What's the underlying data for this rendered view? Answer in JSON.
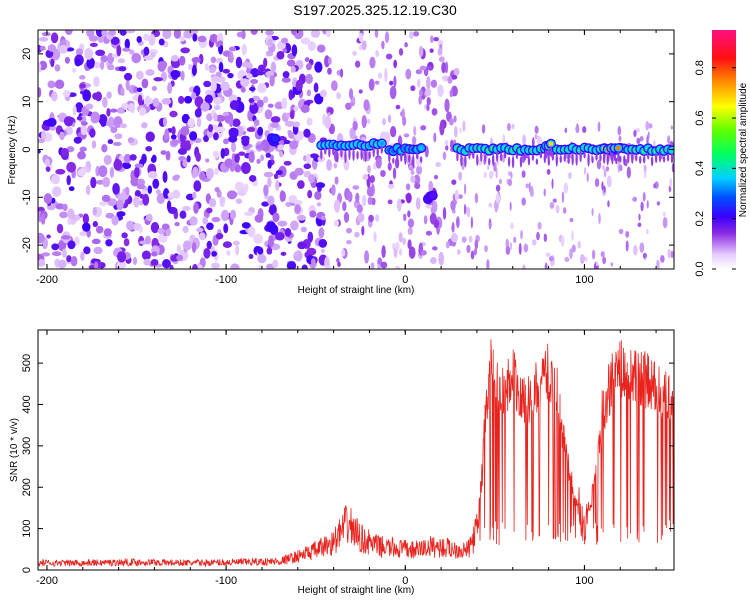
{
  "title": "S197.2025.325.12.19.C30",
  "chart_data": [
    {
      "type": "heatmap",
      "xlabel": "Height of straight line (km)",
      "ylabel": "Frequency (Hz)",
      "xlim": [
        -205,
        150
      ],
      "ylim": [
        -25,
        25
      ],
      "xticks": [
        -200,
        -100,
        0,
        100
      ],
      "yticks": [
        -20,
        -10,
        0,
        10,
        20
      ],
      "colorbar": {
        "label": "Normalized spectral amplitude",
        "range": [
          0,
          0.95
        ],
        "ticks": [
          0.0,
          0.2,
          0.4,
          0.6,
          0.8
        ],
        "tick_labels": [
          "0.0",
          "0.2",
          "0.4",
          "0.6",
          "0.8"
        ]
      },
      "features": [
        {
          "x_range": [
            -205,
            -45
          ],
          "description_level": 0.15,
          "kind": "scattered-noise"
        },
        {
          "x_range": [
            -75,
            -72
          ],
          "freq": 2,
          "level": 0.25
        },
        {
          "x_range": [
            -48,
            -12
          ],
          "freq": 1,
          "level": 0.4
        },
        {
          "x_range": [
            -10,
            10
          ],
          "freq": 0,
          "level": 0.35
        },
        {
          "x_range": [
            12,
            16
          ],
          "freq": -10,
          "level": 0.2
        },
        {
          "x_range": [
            28,
            150
          ],
          "freq": 0,
          "level": 0.5
        },
        {
          "x_range": [
            78,
            82
          ],
          "freq": 1,
          "level": 0.85
        },
        {
          "x_range": [
            110,
            120
          ],
          "freq": 0,
          "level": 0.9
        }
      ]
    },
    {
      "type": "line",
      "xlabel": "Height of straight line (km)",
      "ylabel": "SNR (10 * v/v)",
      "xlim": [
        -205,
        150
      ],
      "ylim": [
        0,
        580
      ],
      "xticks": [
        -200,
        -100,
        0,
        100
      ],
      "yticks": [
        0,
        100,
        200,
        300,
        400,
        500
      ],
      "color": "#e8231e",
      "series": [
        {
          "x": [
            -205,
            -180,
            -150,
            -120,
            -90,
            -70,
            -60,
            -50,
            -40,
            -32,
            -25,
            -15,
            -5,
            5,
            15,
            25,
            35,
            40,
            43,
            45,
            48,
            50,
            55,
            60,
            65,
            70,
            75,
            80,
            85,
            90,
            95,
            100,
            105,
            110,
            115,
            120,
            125,
            130,
            135,
            140,
            145,
            150
          ],
          "values": [
            18,
            18,
            20,
            18,
            20,
            22,
            35,
            50,
            70,
            120,
            80,
            60,
            55,
            50,
            60,
            55,
            50,
            100,
            250,
            420,
            520,
            480,
            450,
            500,
            420,
            430,
            480,
            500,
            450,
            280,
            180,
            100,
            200,
            400,
            480,
            510,
            480,
            500,
            480,
            460,
            440,
            420
          ]
        }
      ]
    }
  ]
}
